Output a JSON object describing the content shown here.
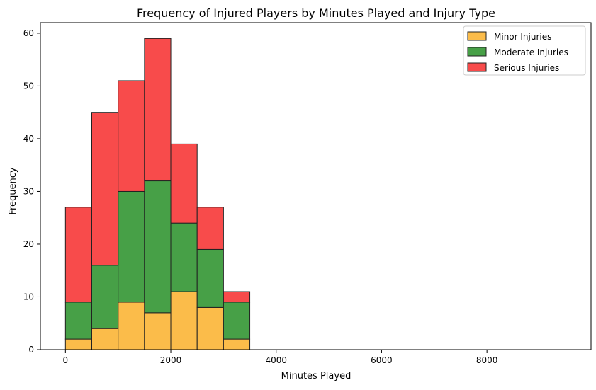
{
  "chart_data": {
    "type": "bar",
    "stacked": true,
    "histogram": true,
    "title": "Frequency of Injured Players by Minutes Played and Injury Type",
    "xlabel": "Minutes Played",
    "ylabel": "Frequency",
    "bins": [
      [
        0,
        500
      ],
      [
        500,
        1000
      ],
      [
        1000,
        1500
      ],
      [
        1500,
        2000
      ],
      [
        2000,
        2500
      ],
      [
        2500,
        3000
      ],
      [
        3000,
        3500
      ],
      [
        3500,
        4000
      ],
      [
        4000,
        4500
      ],
      [
        4500,
        5000
      ],
      [
        5000,
        5500
      ],
      [
        5500,
        6000
      ],
      [
        6000,
        6500
      ],
      [
        6500,
        7000
      ],
      [
        7000,
        7500
      ],
      [
        7500,
        8000
      ],
      [
        8000,
        8500
      ],
      [
        8500,
        9000
      ],
      [
        9000,
        9500
      ]
    ],
    "series": [
      {
        "name": "Minor Injuries",
        "color": "#fbbc4a",
        "values": [
          2,
          4,
          9,
          7,
          11,
          8,
          2,
          0,
          0,
          0,
          0,
          0,
          0,
          0,
          0,
          0,
          0,
          0,
          0
        ]
      },
      {
        "name": "Moderate Injuries",
        "color": "#47a047",
        "values": [
          7,
          12,
          21,
          25,
          13,
          11,
          7,
          0,
          0,
          0,
          0,
          0,
          0,
          0,
          0,
          0,
          0,
          0,
          0
        ]
      },
      {
        "name": "Serious Injuries",
        "color": "#f84b4b",
        "values": [
          18,
          29,
          21,
          27,
          15,
          8,
          2,
          0,
          0,
          0,
          0,
          0,
          0,
          0,
          0,
          0,
          0,
          0,
          0
        ]
      }
    ],
    "xlim": [
      -475,
      9975
    ],
    "ylim": [
      0,
      62
    ],
    "xticks": [
      0,
      2000,
      4000,
      6000,
      8000
    ],
    "yticks": [
      0,
      10,
      20,
      30,
      40,
      50,
      60
    ],
    "legend_position": "top-right",
    "grid": false
  }
}
